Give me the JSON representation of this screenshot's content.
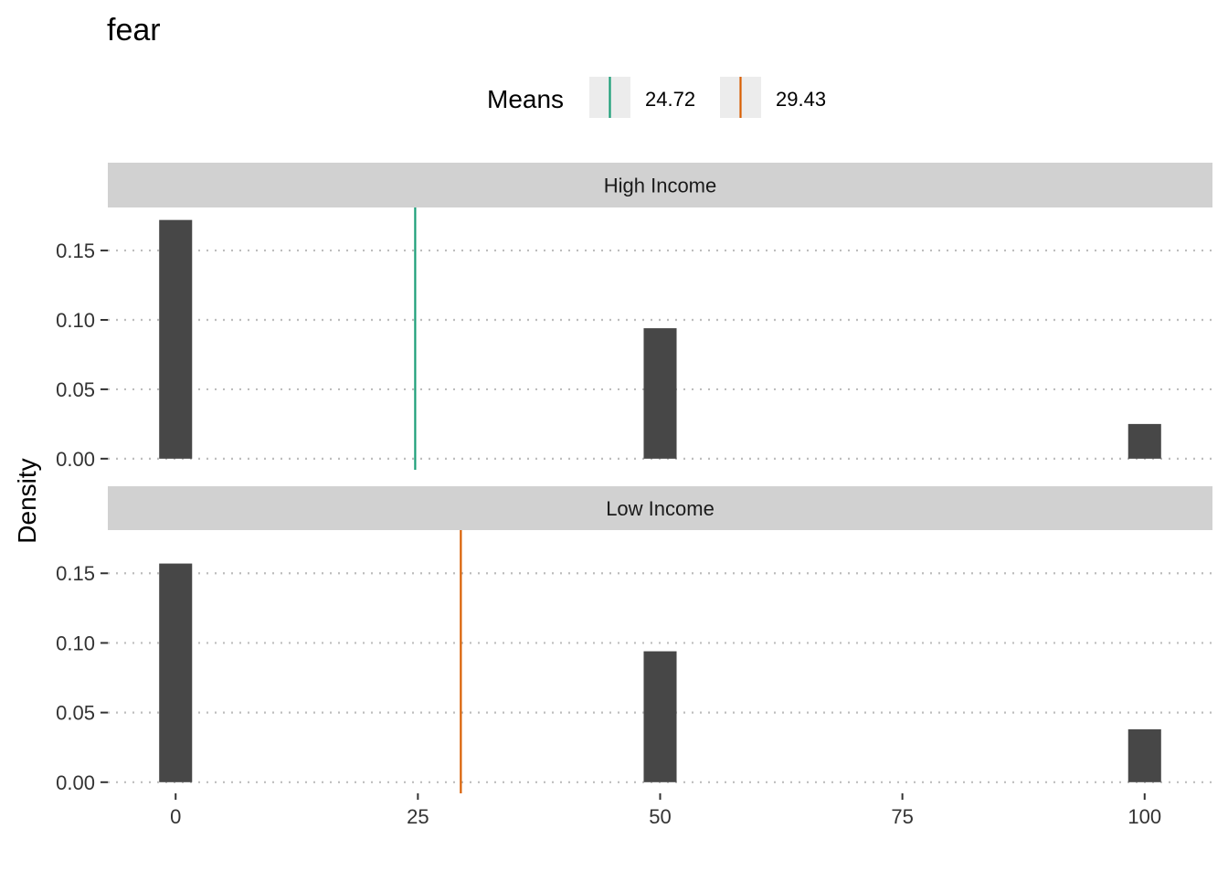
{
  "chart_data": {
    "type": "bar",
    "title": "fear",
    "xlabel": "",
    "ylabel": "Density",
    "xlim": [
      -7,
      107
    ],
    "ylim": [
      -0.008,
      0.181
    ],
    "x_ticks": [
      0,
      25,
      50,
      75,
      100
    ],
    "x_tick_labels": [
      "0",
      "25",
      "50",
      "75",
      "100"
    ],
    "y_ticks": [
      0.0,
      0.05,
      0.1,
      0.15
    ],
    "y_tick_labels": [
      "0.00",
      "0.05",
      "0.10",
      "0.15"
    ],
    "bar_width": 3.4,
    "grid": "horizontal-dotted",
    "legend": {
      "title": "Means",
      "placement": "top",
      "entries": [
        {
          "label": "24.72",
          "color": "#1b9e77"
        },
        {
          "label": "29.43",
          "color": "#d95f02"
        }
      ]
    },
    "panels": [
      {
        "label": "High Income",
        "x": [
          0,
          50,
          100
        ],
        "values": [
          0.172,
          0.094,
          0.025
        ],
        "mean": 24.72,
        "mean_color": "#1b9e77"
      },
      {
        "label": "Low Income",
        "x": [
          0,
          50,
          100
        ],
        "values": [
          0.157,
          0.094,
          0.038
        ],
        "mean": 29.43,
        "mean_color": "#d95f02"
      }
    ]
  },
  "colors": {
    "bar": "#474747",
    "strip": "#d1d1d1",
    "grid": "#bdbdbd",
    "legend_key_bg": "#ececec",
    "text": "#333333"
  }
}
